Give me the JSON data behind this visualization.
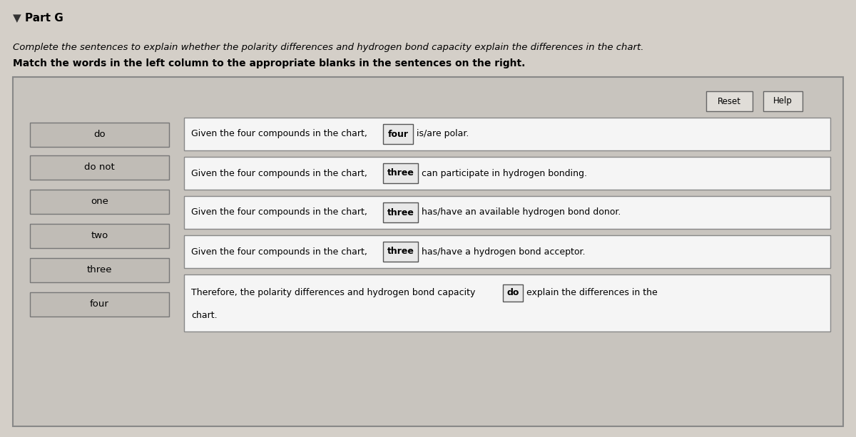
{
  "title": "Part G",
  "bullet": "▼",
  "subtitle_normal": "Complete the sentences to explain whether the polarity differences and hydrogen bond capacity explain the differences in the chart.",
  "subtitle_bold": "Match the words in the left column to the appropriate blanks in the sentences on the right.",
  "fig_bg": "#d4cfc8",
  "panel_bg": "#c8c4be",
  "panel_border": "#888888",
  "left_words": [
    "do",
    "do not",
    "one",
    "two",
    "three",
    "four"
  ],
  "left_box_bg": "#c0bcb6",
  "left_box_border": "#777777",
  "right_box_bg": "#f5f5f5",
  "right_box_border": "#888888",
  "blank_box_bg": "#e8e8e8",
  "blank_box_border": "#555555",
  "button_bg": "#e0ddd8",
  "button_border": "#666666",
  "sentences": [
    {
      "pre": "Given the four compounds in the chart,",
      "blank": "four",
      "post": "is/are polar."
    },
    {
      "pre": "Given the four compounds in the chart,",
      "blank": "three",
      "post": "can participate in hydrogen bonding."
    },
    {
      "pre": "Given the four compounds in the chart,",
      "blank": "three",
      "post": "has/have an available hydrogen bond donor."
    },
    {
      "pre": "Given the four compounds in the chart,",
      "blank": "three",
      "post": "has/have a hydrogen bond acceptor."
    },
    {
      "pre": "Therefore, the polarity differences and hydrogen bond capacity",
      "blank": "do",
      "post": "explain the differences in the\nchart."
    }
  ],
  "font_size_title": 11,
  "font_size_sub": 9.5,
  "font_size_bold": 10,
  "font_size_content": 9,
  "font_size_btn": 8.5
}
